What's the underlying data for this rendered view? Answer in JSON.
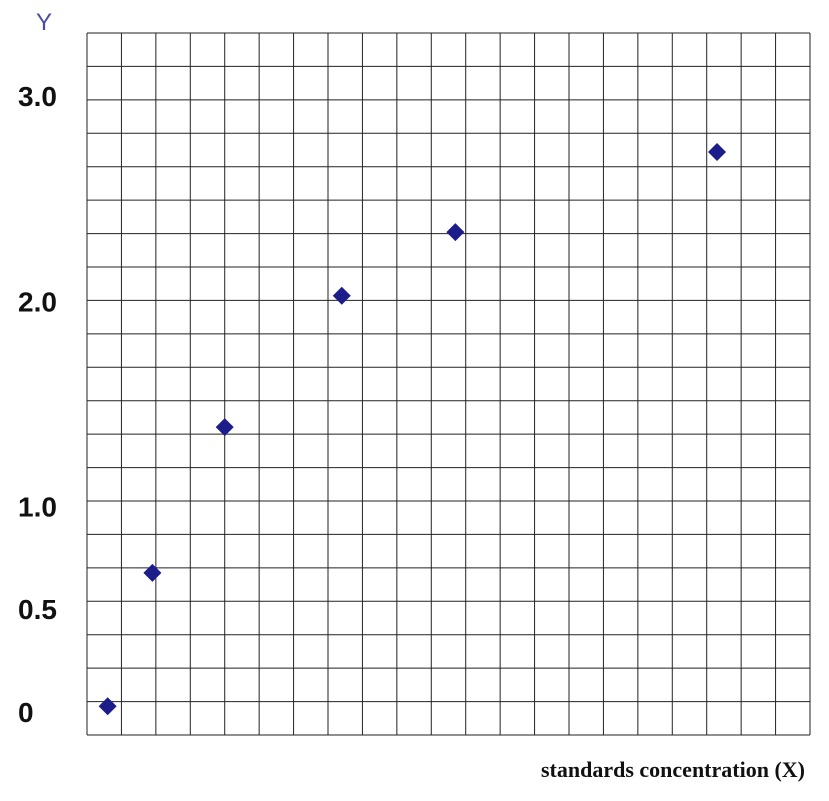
{
  "chart_data": {
    "type": "scatter",
    "y_label": "Y",
    "x_label": "standards concentration (X)",
    "series": [
      {
        "color": "#1c1c8a",
        "x": [
          0.6,
          1.9,
          4.0,
          7.4,
          10.7,
          18.3
        ],
        "values": [
          0.04,
          0.69,
          1.4,
          2.04,
          2.35,
          2.74
        ]
      }
    ],
    "xlim": [
      0,
      21
    ],
    "ylim": [
      -0.1,
      3.32
    ],
    "yticks": [
      0,
      0.5,
      {
        "value": 1,
        "label": "1.0"
      },
      {
        "value": 2,
        "label": "2.0"
      },
      {
        "value": 3,
        "label": "3.0"
      }
    ],
    "grid": true
  }
}
